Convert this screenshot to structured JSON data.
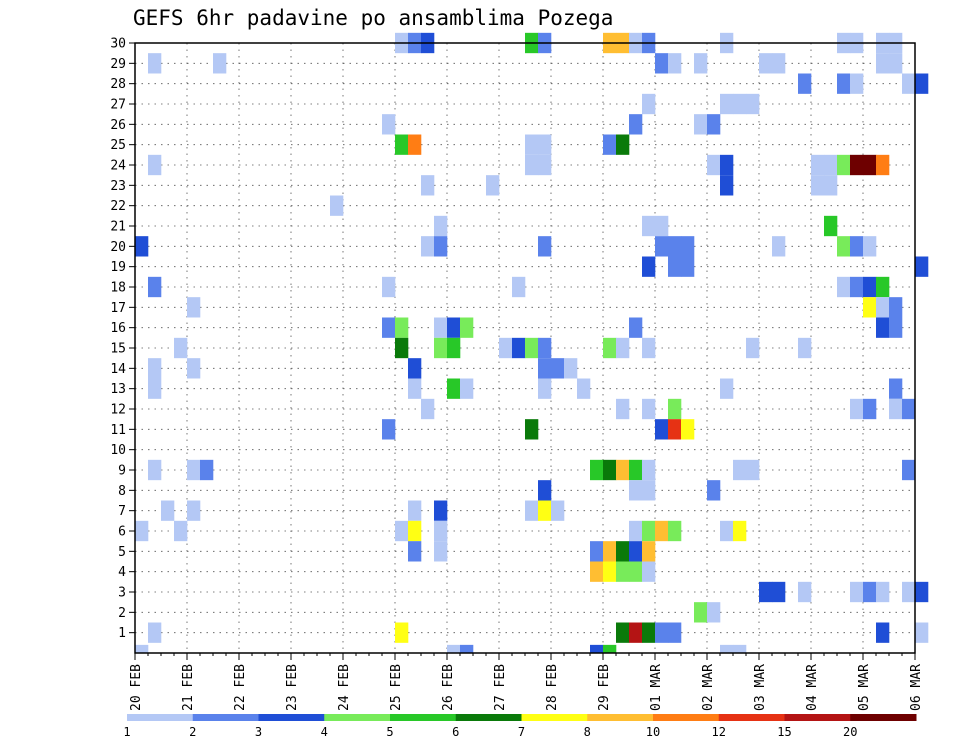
{
  "title": "GEFS 6hr padavine po ansamblima Pozega",
  "chart_data": {
    "type": "heatmap",
    "title": "GEFS 6hr padavine po ansamblima Pozega",
    "y_ticks": [
      "1",
      "2",
      "3",
      "4",
      "5",
      "6",
      "7",
      "8",
      "9",
      "10",
      "11",
      "12",
      "13",
      "14",
      "15",
      "16",
      "17",
      "18",
      "19",
      "20",
      "21",
      "22",
      "23",
      "24",
      "25",
      "26",
      "27",
      "28",
      "29",
      "30"
    ],
    "ylim": [
      0,
      30
    ],
    "x_ticks": [
      "20 FEB",
      "21 FEB",
      "22 FEB",
      "23 FEB",
      "24 FEB",
      "25 FEB",
      "26 FEB",
      "27 FEB",
      "28 FEB",
      "29 FEB",
      "01 MAR",
      "02 MAR",
      "03 MAR",
      "04 MAR",
      "05 MAR",
      "06 MAR"
    ],
    "x_unit": "6-hour steps",
    "n_steps": 60,
    "colorbar_levels": [
      "1",
      "2",
      "3",
      "4",
      "5",
      "6",
      "7",
      "8",
      "10",
      "12",
      "15",
      "20"
    ],
    "colorbar_colors": [
      "#b4c8f5",
      "#5a82eb",
      "#1f4ed6",
      "#78eb5a",
      "#28c828",
      "#0a7a0a",
      "#ffff14",
      "#ffbe32",
      "#ff7d14",
      "#e63214",
      "#b41414",
      "#6e0000"
    ],
    "cells": [
      [
        1,
        1,
        1
      ],
      [
        20,
        30,
        1
      ],
      [
        21,
        30,
        2
      ],
      [
        22,
        30,
        3
      ],
      [
        30,
        30,
        5
      ],
      [
        31,
        30,
        2
      ],
      [
        36,
        30,
        8
      ],
      [
        37,
        30,
        8
      ],
      [
        38,
        30,
        1
      ],
      [
        39,
        30,
        2
      ],
      [
        45,
        30,
        1
      ],
      [
        54,
        30,
        1
      ],
      [
        55,
        30,
        1
      ],
      [
        57,
        30,
        1
      ],
      [
        58,
        30,
        1
      ],
      [
        1,
        29,
        1
      ],
      [
        6,
        29,
        1
      ],
      [
        40,
        29,
        2
      ],
      [
        41,
        29,
        1
      ],
      [
        43,
        29,
        1
      ],
      [
        48,
        29,
        1
      ],
      [
        49,
        29,
        1
      ],
      [
        57,
        29,
        1
      ],
      [
        58,
        29,
        1
      ],
      [
        51,
        28,
        2
      ],
      [
        54,
        28,
        2
      ],
      [
        55,
        28,
        1
      ],
      [
        59,
        28,
        1
      ],
      [
        60,
        28,
        3
      ],
      [
        39,
        27,
        1
      ],
      [
        45,
        27,
        1
      ],
      [
        46,
        27,
        1
      ],
      [
        47,
        27,
        1
      ],
      [
        19,
        26,
        1
      ],
      [
        38,
        26,
        2
      ],
      [
        43,
        26,
        1
      ],
      [
        44,
        26,
        2
      ],
      [
        20,
        25,
        5
      ],
      [
        21,
        25,
        9
      ],
      [
        30,
        25,
        1
      ],
      [
        31,
        25,
        1
      ],
      [
        36,
        25,
        2
      ],
      [
        37,
        25,
        6
      ],
      [
        1,
        24,
        1
      ],
      [
        30,
        24,
        1
      ],
      [
        31,
        24,
        1
      ],
      [
        44,
        24,
        1
      ],
      [
        45,
        24,
        3
      ],
      [
        52,
        24,
        1
      ],
      [
        53,
        24,
        1
      ],
      [
        54,
        24,
        4
      ],
      [
        55,
        24,
        12
      ],
      [
        56,
        24,
        12
      ],
      [
        57,
        24,
        9
      ],
      [
        22,
        23,
        1
      ],
      [
        27,
        23,
        1
      ],
      [
        45,
        23,
        3
      ],
      [
        52,
        23,
        1
      ],
      [
        53,
        23,
        1
      ],
      [
        15,
        22,
        1
      ],
      [
        23,
        21,
        1
      ],
      [
        39,
        21,
        1
      ],
      [
        40,
        21,
        1
      ],
      [
        53,
        21,
        5
      ],
      [
        0,
        20,
        3
      ],
      [
        22,
        20,
        1
      ],
      [
        23,
        20,
        2
      ],
      [
        31,
        20,
        2
      ],
      [
        40,
        20,
        2
      ],
      [
        41,
        20,
        2
      ],
      [
        42,
        20,
        2
      ],
      [
        49,
        20,
        1
      ],
      [
        54,
        20,
        4
      ],
      [
        55,
        20,
        2
      ],
      [
        56,
        20,
        1
      ],
      [
        39,
        19,
        3
      ],
      [
        41,
        19,
        2
      ],
      [
        42,
        19,
        2
      ],
      [
        60,
        19,
        3
      ],
      [
        1,
        18,
        2
      ],
      [
        19,
        18,
        1
      ],
      [
        29,
        18,
        1
      ],
      [
        54,
        18,
        1
      ],
      [
        55,
        18,
        2
      ],
      [
        56,
        18,
        3
      ],
      [
        57,
        18,
        5
      ],
      [
        4,
        17,
        1
      ],
      [
        56,
        17,
        7
      ],
      [
        57,
        17,
        1
      ],
      [
        58,
        17,
        2
      ],
      [
        19,
        16,
        2
      ],
      [
        20,
        16,
        4
      ],
      [
        23,
        16,
        1
      ],
      [
        24,
        16,
        3
      ],
      [
        25,
        16,
        4
      ],
      [
        38,
        16,
        2
      ],
      [
        57,
        16,
        3
      ],
      [
        58,
        16,
        2
      ],
      [
        3,
        15,
        1
      ],
      [
        20,
        15,
        6
      ],
      [
        23,
        15,
        4
      ],
      [
        24,
        15,
        5
      ],
      [
        28,
        15,
        1
      ],
      [
        29,
        15,
        3
      ],
      [
        30,
        15,
        4
      ],
      [
        31,
        15,
        2
      ],
      [
        36,
        15,
        4
      ],
      [
        37,
        15,
        1
      ],
      [
        39,
        15,
        1
      ],
      [
        47,
        15,
        1
      ],
      [
        51,
        15,
        1
      ],
      [
        1,
        14,
        1
      ],
      [
        4,
        14,
        1
      ],
      [
        21,
        14,
        3
      ],
      [
        31,
        14,
        2
      ],
      [
        32,
        14,
        2
      ],
      [
        33,
        14,
        1
      ],
      [
        1,
        13,
        1
      ],
      [
        21,
        13,
        1
      ],
      [
        24,
        13,
        5
      ],
      [
        25,
        13,
        1
      ],
      [
        31,
        13,
        1
      ],
      [
        34,
        13,
        1
      ],
      [
        45,
        13,
        1
      ],
      [
        58,
        13,
        2
      ],
      [
        22,
        12,
        1
      ],
      [
        37,
        12,
        1
      ],
      [
        39,
        12,
        1
      ],
      [
        41,
        12,
        4
      ],
      [
        55,
        12,
        1
      ],
      [
        56,
        12,
        2
      ],
      [
        58,
        12,
        1
      ],
      [
        59,
        12,
        2
      ],
      [
        19,
        11,
        2
      ],
      [
        30,
        11,
        6
      ],
      [
        40,
        11,
        3
      ],
      [
        41,
        11,
        10
      ],
      [
        42,
        11,
        7
      ],
      [
        1,
        9,
        1
      ],
      [
        4,
        9,
        1
      ],
      [
        5,
        9,
        2
      ],
      [
        35,
        9,
        5
      ],
      [
        36,
        9,
        6
      ],
      [
        37,
        9,
        8
      ],
      [
        38,
        9,
        5
      ],
      [
        39,
        9,
        1
      ],
      [
        46,
        9,
        1
      ],
      [
        47,
        9,
        1
      ],
      [
        59,
        9,
        2
      ],
      [
        31,
        8,
        3
      ],
      [
        38,
        8,
        1
      ],
      [
        39,
        8,
        1
      ],
      [
        44,
        8,
        2
      ],
      [
        2,
        7,
        1
      ],
      [
        4,
        7,
        1
      ],
      [
        21,
        7,
        1
      ],
      [
        23,
        7,
        3
      ],
      [
        30,
        7,
        1
      ],
      [
        31,
        7,
        7
      ],
      [
        32,
        7,
        1
      ],
      [
        0,
        6,
        1
      ],
      [
        3,
        6,
        1
      ],
      [
        20,
        6,
        1
      ],
      [
        21,
        6,
        7
      ],
      [
        23,
        6,
        1
      ],
      [
        38,
        6,
        1
      ],
      [
        39,
        6,
        4
      ],
      [
        40,
        6,
        8
      ],
      [
        41,
        6,
        4
      ],
      [
        45,
        6,
        1
      ],
      [
        46,
        6,
        7
      ],
      [
        21,
        5,
        2
      ],
      [
        23,
        5,
        1
      ],
      [
        35,
        5,
        2
      ],
      [
        36,
        5,
        8
      ],
      [
        37,
        5,
        6
      ],
      [
        38,
        5,
        3
      ],
      [
        39,
        5,
        8
      ],
      [
        35,
        4,
        8
      ],
      [
        36,
        4,
        7
      ],
      [
        37,
        4,
        4
      ],
      [
        38,
        4,
        4
      ],
      [
        39,
        4,
        1
      ],
      [
        48,
        3,
        3
      ],
      [
        49,
        3,
        3
      ],
      [
        51,
        3,
        1
      ],
      [
        55,
        3,
        1
      ],
      [
        56,
        3,
        2
      ],
      [
        57,
        3,
        1
      ],
      [
        59,
        3,
        1
      ],
      [
        60,
        3,
        3
      ],
      [
        43,
        2,
        4
      ],
      [
        44,
        2,
        1
      ],
      [
        20,
        1,
        7
      ],
      [
        37,
        1,
        6
      ],
      [
        38,
        1,
        11
      ],
      [
        39,
        1,
        6
      ],
      [
        40,
        1,
        2
      ],
      [
        41,
        1,
        2
      ],
      [
        57,
        1,
        3
      ],
      [
        60,
        1,
        1
      ],
      [
        0,
        0,
        1
      ],
      [
        24,
        0,
        1
      ],
      [
        25,
        0,
        2
      ],
      [
        35,
        0,
        3
      ],
      [
        36,
        0,
        5
      ],
      [
        45,
        0,
        1
      ],
      [
        46,
        0,
        1
      ]
    ]
  }
}
